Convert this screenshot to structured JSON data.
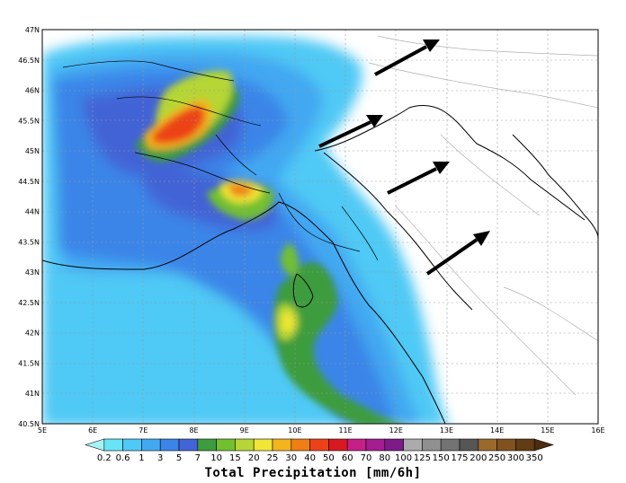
{
  "map": {
    "lon_labels": [
      "5E",
      "6E",
      "7E",
      "8E",
      "9E",
      "10E",
      "11E",
      "12E",
      "13E",
      "14E",
      "15E",
      "16E"
    ],
    "lat_labels": [
      "47N",
      "46.5N",
      "46N",
      "45.5N",
      "45N",
      "44.5N",
      "44N",
      "43.5N",
      "43N",
      "42.5N",
      "42N",
      "41.5N",
      "41N",
      "40.5N"
    ],
    "lon_range": [
      5,
      16
    ],
    "lat_range": [
      40.5,
      47
    ],
    "grid": true,
    "wind_arrows": 4
  },
  "colorbar": {
    "labels": [
      "0.2",
      "0.6",
      "1",
      "3",
      "5",
      "7",
      "10",
      "15",
      "20",
      "25",
      "30",
      "40",
      "50",
      "60",
      "70",
      "80",
      "100",
      "125",
      "150",
      "175",
      "200",
      "250",
      "300",
      "350"
    ],
    "colors": [
      "#a8f3f8",
      "#68e4f6",
      "#4fc9f5",
      "#42a8f2",
      "#3b85e8",
      "#4364d6",
      "#3d9c3d",
      "#72c030",
      "#b5d636",
      "#f0e636",
      "#f3b41e",
      "#ef7e14",
      "#ec4218",
      "#d81a20",
      "#c61f86",
      "#a51d91",
      "#7e1b88",
      "#ababab",
      "#909090",
      "#737373",
      "#565656",
      "#9a6a2c",
      "#7f5220",
      "#623c15",
      "#4d2c0e"
    ],
    "title": "Total Precipitation [mm/6h]"
  }
}
